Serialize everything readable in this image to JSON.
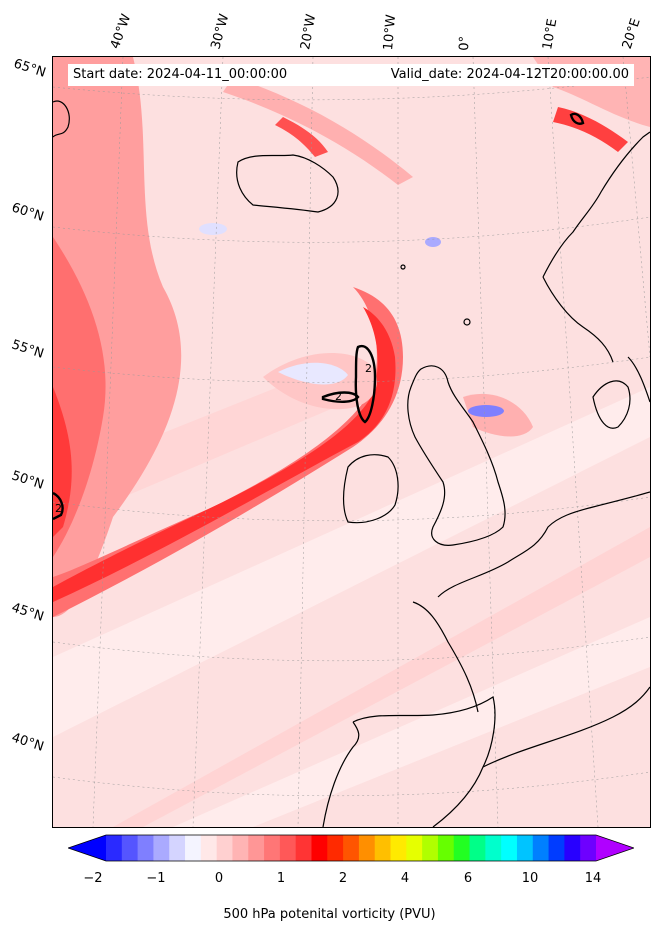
{
  "header": {
    "start_date": "Start date: 2024-04-11_00:00:00",
    "valid_date": "Valid_date: 2024-04-12T20:00:00.00"
  },
  "longitude_labels": [
    "40°W",
    "30°W",
    "20°W",
    "10°W",
    "0°",
    "10°E",
    "20°E"
  ],
  "latitude_labels": [
    "65°N",
    "60°N",
    "55°N",
    "50°N",
    "45°N",
    "40°N"
  ],
  "contour_labels": [
    "2",
    "2",
    "2"
  ],
  "colorbar": {
    "label": "500 hPa potenital vorticity (PVU)",
    "ticks": [
      "−2",
      "−1",
      "0",
      "1",
      "2",
      "4",
      "6",
      "10",
      "14"
    ],
    "colors": [
      "#0000ff",
      "#2a2aff",
      "#5555ff",
      "#7f7fff",
      "#aaaaff",
      "#d4d4ff",
      "#f4f4ff",
      "#ffe8e8",
      "#ffd0d0",
      "#ffb4b4",
      "#ff9696",
      "#ff7676",
      "#ff5858",
      "#ff3434",
      "#ff0000",
      "#ff2a00",
      "#ff5500",
      "#ff8f00",
      "#ffbf00",
      "#ffea00",
      "#e6ff00",
      "#b0ff00",
      "#66ff00",
      "#22ff22",
      "#00ff88",
      "#00ffcc",
      "#00ffff",
      "#00c4ff",
      "#0080ff",
      "#003cff",
      "#2800ff",
      "#6e00ff",
      "#b000ff"
    ]
  }
}
